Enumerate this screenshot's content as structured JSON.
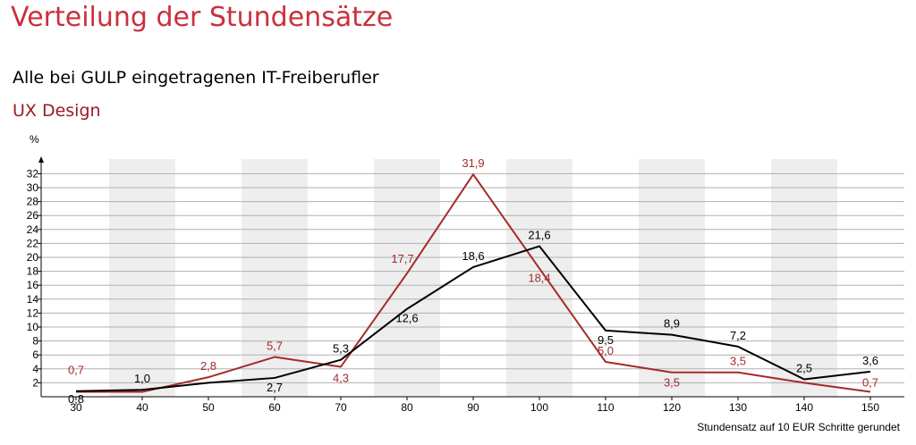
{
  "page": {
    "title": "Verteilung der Stundensätze",
    "subtitle": "Alle bei GULP eingetragenen IT-Freiberufler",
    "category": "UX Design"
  },
  "colors": {
    "title": "#c8313c",
    "category": "#9b1b22",
    "black_series": "#000000",
    "red_series": "#a52a2a",
    "stripe": "#eeeeee",
    "grid": "#b0b0b0"
  },
  "chart_data": {
    "type": "line",
    "x": [
      30,
      40,
      50,
      60,
      70,
      80,
      90,
      100,
      110,
      120,
      130,
      140,
      150
    ],
    "ylabel": "%",
    "xlabel": "Stundensatz auf 10 EUR Schritte gerundet",
    "ylim": [
      0,
      33
    ],
    "yticks": [
      2,
      4,
      6,
      8,
      10,
      12,
      14,
      16,
      18,
      20,
      22,
      24,
      26,
      28,
      30,
      32
    ],
    "grid": true,
    "series": [
      {
        "color": "#000000",
        "values": [
          0.8,
          1.0,
          2.0,
          2.7,
          5.3,
          12.6,
          18.6,
          21.6,
          9.5,
          8.9,
          7.2,
          2.5,
          3.6
        ],
        "labels": [
          "0,8",
          "1,0",
          null,
          "2,7",
          "5,3",
          "12,6",
          "18,6",
          "21,6",
          "9,5",
          "8,9",
          "7,2",
          "2,5",
          "3,6"
        ]
      },
      {
        "color": "#a52a2a",
        "values": [
          0.7,
          0.7,
          2.8,
          5.7,
          4.3,
          17.7,
          31.9,
          18.4,
          5.0,
          3.5,
          3.5,
          2.0,
          0.7
        ],
        "labels": [
          "0,7",
          null,
          "2,8",
          "5,7",
          "4,3",
          "17,7",
          "31,9",
          "18,4",
          "5,0",
          "3,5",
          "3,5",
          null,
          "0,7"
        ]
      }
    ]
  }
}
